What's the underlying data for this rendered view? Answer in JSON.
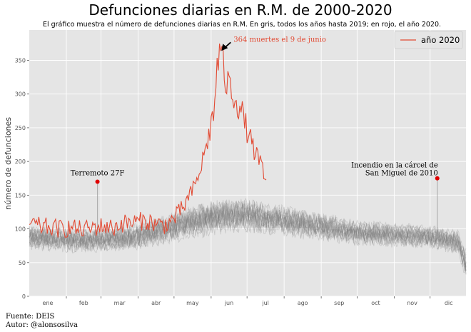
{
  "chart_data": {
    "type": "line",
    "title": "Defunciones diarias en R.M. de 2000-2020",
    "subtitle": "El gráfico muestra el número de defunciones diarias en R.M. En gris, todos los años hasta 2019; en rojo, el año 2020.",
    "ylabel": "número de defunciones",
    "xlabel": "",
    "ylim": [
      0,
      395
    ],
    "yticks": [
      0,
      50,
      100,
      150,
      200,
      250,
      300,
      350
    ],
    "xlim": [
      1,
      366
    ],
    "months": [
      "ene",
      "feb",
      "mar",
      "abr",
      "may",
      "jun",
      "jul",
      "ago",
      "sep",
      "oct",
      "nov",
      "dic"
    ],
    "grid": true,
    "legend": {
      "position": "top-right",
      "entries": [
        "año 2020"
      ]
    },
    "colors": {
      "background": "#e5e5e5",
      "grid": "#ffffff",
      "series_2020": "#e24a33",
      "past_years": "#7f7f7f",
      "marker": "#e00000"
    },
    "series_2020_weekly": {
      "name": "año 2020",
      "day_of_year": [
        1,
        8,
        15,
        22,
        29,
        36,
        43,
        50,
        57,
        64,
        71,
        78,
        85,
        92,
        99,
        106,
        113,
        120,
        127,
        134,
        141,
        148,
        155,
        158,
        161,
        165,
        172,
        179,
        186,
        193,
        199
      ],
      "values": [
        110,
        104,
        103,
        101,
        100,
        102,
        99,
        100,
        103,
        104,
        101,
        108,
        109,
        111,
        112,
        108,
        105,
        112,
        125,
        145,
        170,
        215,
        270,
        340,
        364,
        320,
        300,
        270,
        230,
        200,
        168
      ]
    },
    "past_years_band": {
      "day_of_year": [
        1,
        32,
        60,
        91,
        121,
        152,
        182,
        213,
        244,
        274,
        305,
        335,
        366
      ],
      "low": [
        65,
        62,
        62,
        65,
        75,
        85,
        90,
        85,
        78,
        72,
        70,
        68,
        55
      ],
      "high": [
        110,
        105,
        105,
        112,
        130,
        150,
        150,
        140,
        128,
        118,
        112,
        110,
        100
      ]
    },
    "annotations": [
      {
        "text": "364 muertes el 9 de junio",
        "x": 161,
        "y": 364
      },
      {
        "text": "Terremoto 27F",
        "x": 58,
        "y": 170
      },
      {
        "text": "Incendio en la cárcel de San Miguel de 2010",
        "lines": [
          "Incendio en la cárcel de",
          "San Miguel de 2010"
        ],
        "x": 342,
        "y": 175
      }
    ]
  },
  "footer": {
    "line1": "Fuente: DEIS",
    "line2": "Autor: @alonsosilva"
  }
}
